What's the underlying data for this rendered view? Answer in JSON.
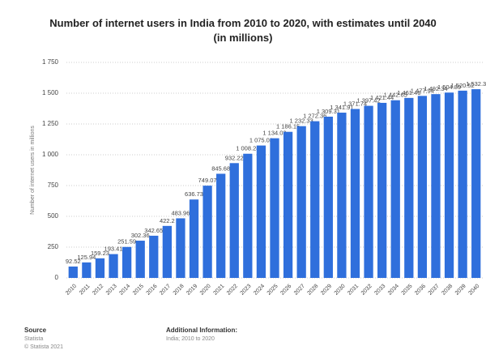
{
  "chart_data": {
    "type": "bar",
    "title": "Number of internet users in India from 2010 to 2020, with estimates until 2040 (in millions)",
    "y_label": "Number of internet users in millions",
    "categories": [
      "2010",
      "2011",
      "2012",
      "2013",
      "2014",
      "2015",
      "2016",
      "2017",
      "2018",
      "2019",
      "2020",
      "2021",
      "2022",
      "2023",
      "2024",
      "2025",
      "2026",
      "2027",
      "2028",
      "2029",
      "2030",
      "2031",
      "2032",
      "2033",
      "2034",
      "2035",
      "2036",
      "2037",
      "2038",
      "2039",
      "2040"
    ],
    "values": [
      92.52,
      125.94,
      159.23,
      193.41,
      251.59,
      302.36,
      342.65,
      422.2,
      483.96,
      636.73,
      749.07,
      845.68,
      932.22,
      1008.24,
      1075.08,
      1134.03,
      1186.15,
      1232.33,
      1272.36,
      1309.31,
      1341.91,
      1371.74,
      1397.42,
      1421.44,
      1442.65,
      1461.46,
      1477.94,
      1492.34,
      1504.89,
      1520.52,
      1532.3
    ],
    "value_labels": [
      "92.52",
      "125.94",
      "159.23",
      "193.41",
      "251.59",
      "302.36",
      "342.65",
      "422.2",
      "483.96",
      "636.73",
      "749.07",
      "845.68",
      "932.22",
      "1 008.24",
      "1 075.08",
      "1 134.03",
      "1 186.15",
      "1 232.33",
      "1 272.36",
      "1 309.31",
      "1 341.91",
      "1 371.74",
      "1 397.42",
      "1 421.44",
      "1 442.65",
      "1 461.46",
      "1 477.94",
      "1 492.34",
      "1 504.89",
      "1 520.52",
      "1 532.3"
    ],
    "color": "#2f6fdc",
    "ylim": [
      0,
      1750
    ],
    "yticks": [
      0,
      250,
      500,
      750,
      {
        "value": 1000,
        "label": "1 000"
      },
      {
        "value": 1250,
        "label": "1 250"
      },
      {
        "value": 1500,
        "label": "1 500"
      },
      {
        "value": 1750,
        "label": "1 750"
      }
    ],
    "grid": true
  },
  "footer": {
    "source_heading": "Source",
    "source": [
      "Statista",
      "© Statista 2021"
    ],
    "info_heading": "Additional Information:",
    "info": "India; 2010 to 2020"
  }
}
